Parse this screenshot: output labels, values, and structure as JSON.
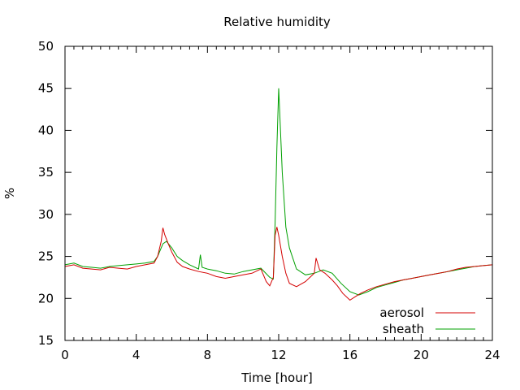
{
  "chart_data": {
    "type": "line",
    "title": "Relative humidity",
    "xlabel": "Time [hour]",
    "ylabel": "%",
    "xlim": [
      0,
      24
    ],
    "ylim": [
      15,
      50
    ],
    "xticks": [
      0,
      4,
      8,
      12,
      16,
      20,
      24
    ],
    "yticks": [
      15,
      20,
      25,
      30,
      35,
      40,
      45,
      50
    ],
    "grid": false,
    "legend": "bottom-right",
    "series": [
      {
        "name": "aerosol",
        "color": "#d40000",
        "x": [
          0,
          0.5,
          1,
          1.5,
          2,
          2.5,
          3,
          3.5,
          4,
          4.5,
          5,
          5.2,
          5.4,
          5.5,
          5.6,
          5.8,
          6,
          6.3,
          6.6,
          7,
          7.5,
          8,
          8.5,
          9,
          9.5,
          10,
          10.5,
          11,
          11.3,
          11.5,
          11.7,
          11.8,
          11.9,
          12.0,
          12.2,
          12.4,
          12.6,
          13,
          13.5,
          14,
          14.1,
          14.3,
          14.6,
          15,
          15.3,
          15.6,
          16,
          16.3,
          16.6,
          17,
          17.5,
          18,
          18.5,
          19,
          19.5,
          20,
          20.5,
          21,
          21.5,
          22,
          22.5,
          23,
          23.5,
          24
        ],
        "y": [
          23.8,
          24.0,
          23.6,
          23.5,
          23.4,
          23.7,
          23.6,
          23.5,
          23.8,
          24.0,
          24.2,
          25.0,
          26.8,
          28.4,
          27.6,
          26.5,
          25.5,
          24.3,
          23.8,
          23.5,
          23.2,
          23.0,
          22.6,
          22.4,
          22.6,
          22.8,
          23.0,
          23.5,
          22.0,
          21.5,
          22.5,
          27.5,
          28.5,
          27.5,
          25.0,
          23.0,
          21.8,
          21.4,
          22.0,
          23.0,
          24.8,
          23.4,
          23.0,
          22.2,
          21.5,
          20.6,
          19.8,
          20.2,
          20.6,
          21.0,
          21.4,
          21.7,
          22.0,
          22.2,
          22.4,
          22.6,
          22.8,
          23.0,
          23.2,
          23.5,
          23.7,
          23.8,
          23.9,
          24.0
        ]
      },
      {
        "name": "sheath",
        "color": "#00a000",
        "x": [
          0,
          0.5,
          1,
          1.5,
          2,
          2.5,
          3,
          3.5,
          4,
          4.5,
          5,
          5.2,
          5.5,
          5.7,
          6,
          6.3,
          6.6,
          7,
          7.5,
          7.6,
          7.7,
          8,
          8.5,
          9,
          9.5,
          10,
          10.5,
          11,
          11.5,
          11.7,
          11.8,
          11.9,
          12.0,
          12.1,
          12.2,
          12.4,
          12.6,
          13,
          13.5,
          14,
          14.5,
          15,
          15.5,
          16,
          16.5,
          17,
          17.5,
          18,
          18.5,
          19,
          19.5,
          20,
          20.5,
          21,
          21.5,
          22,
          22.5,
          23,
          23.5,
          24
        ],
        "y": [
          24.0,
          24.2,
          23.8,
          23.7,
          23.6,
          23.8,
          23.9,
          24.0,
          24.1,
          24.2,
          24.4,
          25.0,
          26.5,
          26.8,
          26.0,
          25.0,
          24.5,
          24.0,
          23.5,
          25.2,
          23.7,
          23.5,
          23.3,
          23.0,
          22.9,
          23.2,
          23.4,
          23.6,
          22.5,
          22.3,
          29.0,
          38.0,
          45.0,
          40.0,
          35.0,
          28.5,
          26.0,
          23.5,
          22.8,
          23.0,
          23.4,
          23.0,
          21.8,
          20.8,
          20.4,
          20.8,
          21.3,
          21.6,
          21.9,
          22.2,
          22.4,
          22.6,
          22.8,
          23.0,
          23.2,
          23.4,
          23.6,
          23.8,
          23.9,
          24.0
        ]
      }
    ]
  }
}
